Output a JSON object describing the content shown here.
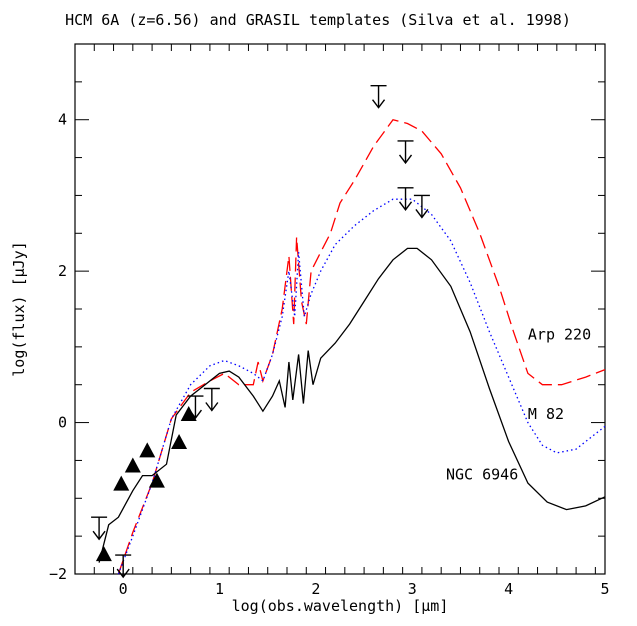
{
  "chart_data": {
    "type": "line",
    "title": "HCM 6A (z=6.56) and GRASIL templates (Silva et al. 1998)",
    "xlabel": "log(obs.wavelength) [μm]",
    "ylabel": "log(flux) [μJy]",
    "xlim": [
      -0.5,
      5
    ],
    "ylim": [
      -2,
      5
    ],
    "xticks": [
      "0",
      "1",
      "2",
      "3",
      "4",
      "5"
    ],
    "yticks": [
      "−2",
      "0",
      "2",
      "4"
    ],
    "grid": false,
    "series": [
      {
        "name": "Arp 220",
        "color": "#ff0000",
        "style": "dashed",
        "points": [
          [
            -0.05,
            -2.0
          ],
          [
            0.1,
            -1.45
          ],
          [
            0.3,
            -0.8
          ],
          [
            0.5,
            0.05
          ],
          [
            0.7,
            0.4
          ],
          [
            0.9,
            0.55
          ],
          [
            1.05,
            0.65
          ],
          [
            1.2,
            0.5
          ],
          [
            1.35,
            0.5
          ],
          [
            1.4,
            0.8
          ],
          [
            1.45,
            0.55
          ],
          [
            1.55,
            0.9
          ],
          [
            1.65,
            1.5
          ],
          [
            1.72,
            2.2
          ],
          [
            1.77,
            1.3
          ],
          [
            1.8,
            2.45
          ],
          [
            1.85,
            1.6
          ],
          [
            1.9,
            1.3
          ],
          [
            1.95,
            2.0
          ],
          [
            2.05,
            2.25
          ],
          [
            2.15,
            2.5
          ],
          [
            2.25,
            2.9
          ],
          [
            2.4,
            3.2
          ],
          [
            2.6,
            3.65
          ],
          [
            2.8,
            4.0
          ],
          [
            2.95,
            3.95
          ],
          [
            3.1,
            3.85
          ],
          [
            3.3,
            3.55
          ],
          [
            3.5,
            3.1
          ],
          [
            3.7,
            2.5
          ],
          [
            3.9,
            1.8
          ],
          [
            4.05,
            1.2
          ],
          [
            4.2,
            0.65
          ],
          [
            4.35,
            0.5
          ],
          [
            4.55,
            0.5
          ],
          [
            4.8,
            0.6
          ],
          [
            5.0,
            0.7
          ]
        ]
      },
      {
        "name": "M 82",
        "color": "#0000ff",
        "style": "dotted",
        "points": [
          [
            -0.05,
            -2.0
          ],
          [
            0.1,
            -1.5
          ],
          [
            0.3,
            -0.8
          ],
          [
            0.5,
            0.05
          ],
          [
            0.7,
            0.5
          ],
          [
            0.9,
            0.75
          ],
          [
            1.05,
            0.82
          ],
          [
            1.2,
            0.75
          ],
          [
            1.35,
            0.65
          ],
          [
            1.45,
            0.55
          ],
          [
            1.55,
            0.9
          ],
          [
            1.65,
            1.4
          ],
          [
            1.72,
            2.0
          ],
          [
            1.78,
            1.4
          ],
          [
            1.82,
            2.25
          ],
          [
            1.88,
            1.4
          ],
          [
            1.95,
            1.7
          ],
          [
            2.05,
            2.0
          ],
          [
            2.2,
            2.35
          ],
          [
            2.4,
            2.6
          ],
          [
            2.6,
            2.8
          ],
          [
            2.8,
            2.95
          ],
          [
            3.0,
            2.95
          ],
          [
            3.2,
            2.75
          ],
          [
            3.4,
            2.4
          ],
          [
            3.6,
            1.85
          ],
          [
            3.8,
            1.2
          ],
          [
            4.0,
            0.6
          ],
          [
            4.2,
            0.0
          ],
          [
            4.35,
            -0.3
          ],
          [
            4.5,
            -0.4
          ],
          [
            4.7,
            -0.35
          ],
          [
            4.85,
            -0.2
          ],
          [
            5.0,
            -0.05
          ]
        ]
      },
      {
        "name": "NGC 6946",
        "color": "#000000",
        "style": "solid",
        "points": [
          [
            -0.25,
            -1.85
          ],
          [
            -0.15,
            -1.35
          ],
          [
            -0.05,
            -1.25
          ],
          [
            0.1,
            -0.9
          ],
          [
            0.2,
            -0.7
          ],
          [
            0.3,
            -0.7
          ],
          [
            0.45,
            -0.55
          ],
          [
            0.55,
            0.1
          ],
          [
            0.7,
            0.35
          ],
          [
            0.85,
            0.5
          ],
          [
            1.0,
            0.65
          ],
          [
            1.1,
            0.68
          ],
          [
            1.2,
            0.6
          ],
          [
            1.35,
            0.35
          ],
          [
            1.45,
            0.15
          ],
          [
            1.55,
            0.35
          ],
          [
            1.62,
            0.55
          ],
          [
            1.68,
            0.2
          ],
          [
            1.72,
            0.8
          ],
          [
            1.76,
            0.3
          ],
          [
            1.82,
            0.9
          ],
          [
            1.87,
            0.25
          ],
          [
            1.92,
            0.95
          ],
          [
            1.97,
            0.5
          ],
          [
            2.05,
            0.85
          ],
          [
            2.2,
            1.05
          ],
          [
            2.35,
            1.3
          ],
          [
            2.5,
            1.6
          ],
          [
            2.65,
            1.9
          ],
          [
            2.8,
            2.15
          ],
          [
            2.95,
            2.3
          ],
          [
            3.05,
            2.3
          ],
          [
            3.2,
            2.15
          ],
          [
            3.4,
            1.8
          ],
          [
            3.6,
            1.2
          ],
          [
            3.8,
            0.45
          ],
          [
            4.0,
            -0.25
          ],
          [
            4.2,
            -0.8
          ],
          [
            4.4,
            -1.05
          ],
          [
            4.6,
            -1.15
          ],
          [
            4.8,
            -1.1
          ],
          [
            5.0,
            -0.98
          ]
        ]
      }
    ],
    "series_labels": [
      {
        "text": "Arp 220",
        "x": 4.2,
        "y": 1.1
      },
      {
        "text": "M 82",
        "x": 4.2,
        "y": 0.05
      },
      {
        "text": "NGC 6946",
        "x": 3.35,
        "y": -0.75
      }
    ],
    "detections": [
      [
        -0.2,
        -1.75
      ],
      [
        -0.02,
        -0.82
      ],
      [
        0.1,
        -0.58
      ],
      [
        0.25,
        -0.38
      ],
      [
        0.35,
        -0.78
      ],
      [
        0.58,
        -0.27
      ],
      [
        0.68,
        0.1
      ]
    ],
    "upper_limits": [
      [
        -0.25,
        -1.25
      ],
      [
        0.0,
        -1.75
      ],
      [
        0.75,
        0.35
      ],
      [
        0.92,
        0.45
      ],
      [
        2.65,
        4.45
      ],
      [
        2.93,
        3.72
      ],
      [
        2.93,
        3.1
      ],
      [
        3.1,
        3.0
      ]
    ]
  }
}
